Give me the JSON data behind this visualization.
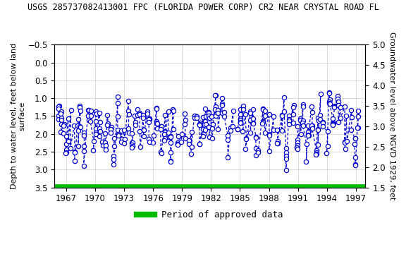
{
  "title": "USGS 285737082413001 FPC (FLORIDA POWER CORP) CR2 NEAR CRYSTAL ROAD FL",
  "ylabel_left": "Depth to water level, feet below land\nsurface",
  "ylabel_right": "Groundwater level above NGVD 1929, feet",
  "ylim_left": [
    -0.5,
    3.5
  ],
  "ylim_right": [
    5.0,
    1.5
  ],
  "xlim": [
    1965.8,
    1998.0
  ],
  "xticks": [
    1967,
    1970,
    1973,
    1976,
    1979,
    1982,
    1985,
    1988,
    1991,
    1994,
    1997
  ],
  "yticks_left": [
    -0.5,
    0.0,
    0.5,
    1.0,
    1.5,
    2.0,
    2.5,
    3.0,
    3.5
  ],
  "yticks_right": [
    5.0,
    4.5,
    4.0,
    3.5,
    3.0,
    2.5,
    2.0,
    1.5
  ],
  "line_color": "#0000CC",
  "marker_facecolor": "#FFFFFF",
  "marker_edgecolor": "#0000CC",
  "green_bar_color": "#00BB00",
  "bg_color": "#FFFFFF",
  "title_fontsize": 8.5,
  "axis_label_fontsize": 8.0,
  "tick_fontsize": 8.5,
  "legend_fontsize": 9.0,
  "markersize": 4.5,
  "linewidth": 0.9
}
